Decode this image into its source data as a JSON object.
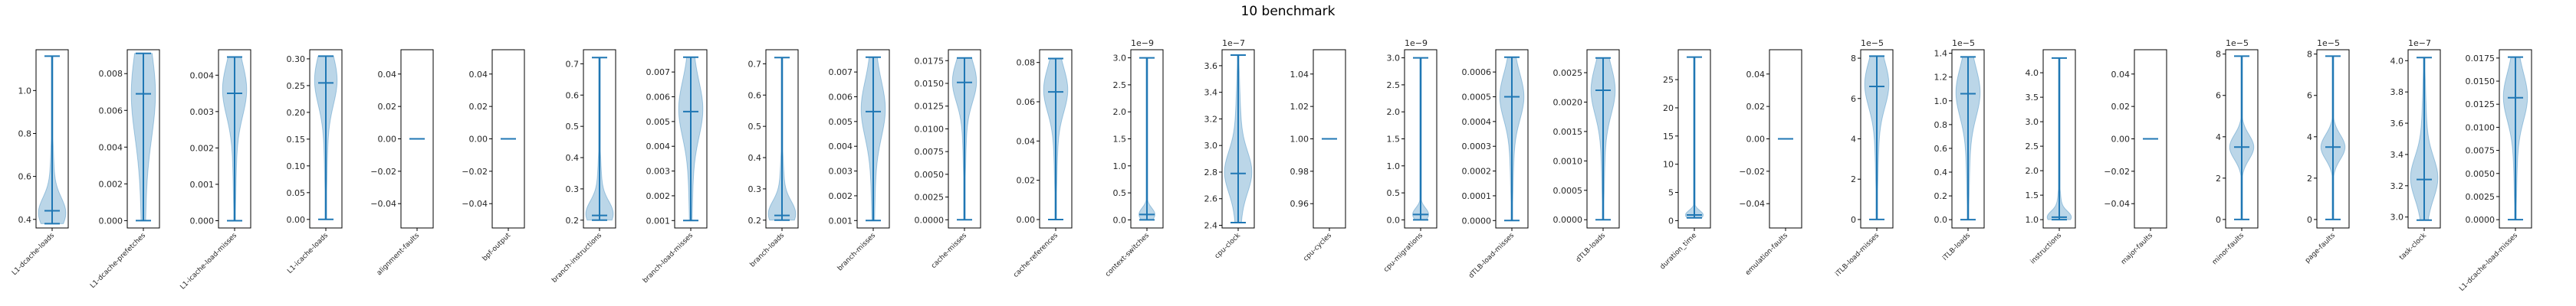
{
  "title": "10 benchmark",
  "colors": {
    "violin_fill": "#1f77b4",
    "line": "#1f77b4",
    "axes": "#000000"
  },
  "chart_data": {
    "type": "violin",
    "title": "10 benchmark",
    "panels": [
      {
        "name": "L1-dcache-loads",
        "ylim": [
          0.36,
          1.19
        ],
        "ticks": [
          0.4,
          0.6,
          0.8,
          1.0
        ],
        "tick_labels": [
          "0.4",
          "0.6",
          "0.8",
          "1.0"
        ],
        "offset": "",
        "min": 0.38,
        "max": 1.16,
        "median": 0.44,
        "mode": 0.43,
        "width": 0.85,
        "spread": 0.07,
        "tail": 0.28
      },
      {
        "name": "L1-dcache-prefetches",
        "ylim": [
          -0.0004,
          0.0093
        ],
        "ticks": [
          0.0,
          0.002,
          0.004,
          0.006,
          0.008
        ],
        "tick_labels": [
          "0.000",
          "0.002",
          "0.004",
          "0.006",
          "0.008"
        ],
        "offset": "",
        "min": 0.0,
        "max": 0.0091,
        "median": 0.0069,
        "mode": 0.0069,
        "width": 0.75,
        "spread": 0.0023,
        "tail": 0.4
      },
      {
        "name": "L1-icache-load-misses",
        "ylim": [
          -0.0002,
          0.0047
        ],
        "ticks": [
          0.0,
          0.001,
          0.002,
          0.003,
          0.004
        ],
        "tick_labels": [
          "0.000",
          "0.001",
          "0.002",
          "0.003",
          "0.004"
        ],
        "offset": "",
        "min": 0.0,
        "max": 0.0045,
        "median": 0.0035,
        "mode": 0.0036,
        "width": 0.75,
        "spread": 0.0007,
        "tail": 0.3
      },
      {
        "name": "L1-icache-loads",
        "ylim": [
          -0.016,
          0.317
        ],
        "ticks": [
          0.0,
          0.05,
          0.1,
          0.15,
          0.2,
          0.25,
          0.3
        ],
        "tick_labels": [
          "0.00",
          "0.05",
          "0.10",
          "0.15",
          "0.20",
          "0.25",
          "0.30"
        ],
        "offset": "",
        "min": 0.0,
        "max": 0.305,
        "median": 0.255,
        "mode": 0.26,
        "width": 0.7,
        "spread": 0.045,
        "tail": 0.3
      },
      {
        "name": "alignment-faults",
        "ylim": [
          -0.055,
          0.055
        ],
        "ticks": [
          -0.04,
          -0.02,
          0.0,
          0.02,
          0.04
        ],
        "tick_labels": [
          "−0.04",
          "−0.02",
          "0.00",
          "0.02",
          "0.04"
        ],
        "offset": "",
        "min": 0.0,
        "max": 0.0,
        "median": 0.0,
        "mode": 0.0,
        "width": 0.0,
        "spread": 0.0,
        "tail": 0.0
      },
      {
        "name": "bpf-output",
        "ylim": [
          -0.055,
          0.055
        ],
        "ticks": [
          -0.04,
          -0.02,
          0.0,
          0.02,
          0.04
        ],
        "tick_labels": [
          "−0.04",
          "−0.02",
          "0.00",
          "0.02",
          "0.04"
        ],
        "offset": "",
        "min": 0.0,
        "max": 0.0,
        "median": 0.0,
        "mode": 0.0,
        "width": 0.0,
        "spread": 0.0,
        "tail": 0.0
      },
      {
        "name": "branch-instructions",
        "ylim": [
          0.175,
          0.745
        ],
        "ticks": [
          0.2,
          0.3,
          0.4,
          0.5,
          0.6,
          0.7
        ],
        "tick_labels": [
          "0.2",
          "0.3",
          "0.4",
          "0.5",
          "0.6",
          "0.7"
        ],
        "offset": "",
        "min": 0.2,
        "max": 0.72,
        "median": 0.215,
        "mode": 0.22,
        "width": 0.85,
        "spread": 0.04,
        "tail": 0.3
      },
      {
        "name": "branch-load-misses",
        "ylim": [
          0.0007,
          0.0079
        ],
        "ticks": [
          0.001,
          0.002,
          0.003,
          0.004,
          0.005,
          0.006,
          0.007
        ],
        "tick_labels": [
          "0.001",
          "0.002",
          "0.003",
          "0.004",
          "0.005",
          "0.006",
          "0.007"
        ],
        "offset": "",
        "min": 0.001,
        "max": 0.0076,
        "median": 0.0054,
        "mode": 0.0055,
        "width": 0.75,
        "spread": 0.0011,
        "tail": 0.35
      },
      {
        "name": "branch-loads",
        "ylim": [
          0.175,
          0.745
        ],
        "ticks": [
          0.2,
          0.3,
          0.4,
          0.5,
          0.6,
          0.7
        ],
        "tick_labels": [
          "0.2",
          "0.3",
          "0.4",
          "0.5",
          "0.6",
          "0.7"
        ],
        "offset": "",
        "min": 0.2,
        "max": 0.72,
        "median": 0.215,
        "mode": 0.22,
        "width": 0.85,
        "spread": 0.04,
        "tail": 0.3
      },
      {
        "name": "branch-misses",
        "ylim": [
          0.0007,
          0.0079
        ],
        "ticks": [
          0.001,
          0.002,
          0.003,
          0.004,
          0.005,
          0.006,
          0.007
        ],
        "tick_labels": [
          "0.001",
          "0.002",
          "0.003",
          "0.004",
          "0.005",
          "0.006",
          "0.007"
        ],
        "offset": "",
        "min": 0.001,
        "max": 0.0076,
        "median": 0.0054,
        "mode": 0.0055,
        "width": 0.75,
        "spread": 0.0011,
        "tail": 0.35
      },
      {
        "name": "cache-misses",
        "ylim": [
          -0.0009,
          0.0187
        ],
        "ticks": [
          0.0,
          0.0025,
          0.005,
          0.0075,
          0.01,
          0.0125,
          0.015,
          0.0175
        ],
        "tick_labels": [
          "0.0000",
          "0.0025",
          "0.0050",
          "0.0075",
          "0.0100",
          "0.0125",
          "0.0150",
          "0.0175"
        ],
        "offset": "",
        "min": 0.0,
        "max": 0.0178,
        "median": 0.0151,
        "mode": 0.0152,
        "width": 0.75,
        "spread": 0.0022,
        "tail": 0.3
      },
      {
        "name": "cache-references",
        "ylim": [
          -0.0043,
          0.0865
        ],
        "ticks": [
          0.0,
          0.02,
          0.04,
          0.06,
          0.08
        ],
        "tick_labels": [
          "0.00",
          "0.02",
          "0.04",
          "0.06",
          "0.08"
        ],
        "offset": "",
        "min": 0.0,
        "max": 0.082,
        "median": 0.065,
        "mode": 0.066,
        "width": 0.75,
        "spread": 0.011,
        "tail": 0.3
      },
      {
        "name": "context-switches",
        "ylim": [
          -0.15,
          3.15
        ],
        "ticks": [
          0.0,
          0.5,
          1.0,
          1.5,
          2.0,
          2.5,
          3.0
        ],
        "tick_labels": [
          "0.0",
          "0.5",
          "1.0",
          "1.5",
          "2.0",
          "2.5",
          "3.0"
        ],
        "offset": "1e−9",
        "min": 0.0,
        "max": 3.0,
        "median": 0.1,
        "mode": 0.1,
        "width": 0.5,
        "spread": 0.12,
        "tail": 0.0
      },
      {
        "name": "cpu-clock",
        "ylim": [
          2.38,
          3.72
        ],
        "ticks": [
          2.4,
          2.6,
          2.8,
          3.0,
          3.2,
          3.4,
          3.6
        ],
        "tick_labels": [
          "2.4",
          "2.6",
          "2.8",
          "3.0",
          "3.2",
          "3.4",
          "3.6"
        ],
        "offset": "1e−7",
        "min": 2.42,
        "max": 3.68,
        "median": 2.79,
        "mode": 2.8,
        "width": 0.85,
        "spread": 0.15,
        "tail": 0.4
      },
      {
        "name": "cpu-cycles",
        "ylim": [
          0.945,
          1.055
        ],
        "ticks": [
          0.96,
          0.98,
          1.0,
          1.02,
          1.04
        ],
        "tick_labels": [
          "0.96",
          "0.98",
          "1.00",
          "1.02",
          "1.04"
        ],
        "offset": "",
        "min": 1.0,
        "max": 1.0,
        "median": 1.0,
        "mode": 1.0,
        "width": 0.0,
        "spread": 0.0,
        "tail": 0.0
      },
      {
        "name": "cpu-migrations",
        "ylim": [
          -0.15,
          3.15
        ],
        "ticks": [
          0.0,
          0.5,
          1.0,
          1.5,
          2.0,
          2.5,
          3.0
        ],
        "tick_labels": [
          "0.0",
          "0.5",
          "1.0",
          "1.5",
          "2.0",
          "2.5",
          "3.0"
        ],
        "offset": "1e−9",
        "min": 0.0,
        "max": 3.0,
        "median": 0.1,
        "mode": 0.1,
        "width": 0.5,
        "spread": 0.12,
        "tail": 0.0
      },
      {
        "name": "dTLB-load-misses",
        "ylim": [
          -3e-05,
          0.00069
        ],
        "ticks": [
          0.0,
          0.0001,
          0.0002,
          0.0003,
          0.0004,
          0.0005,
          0.0006
        ],
        "tick_labels": [
          "0.0000",
          "0.0001",
          "0.0002",
          "0.0003",
          "0.0004",
          "0.0005",
          "0.0006"
        ],
        "offset": "",
        "min": 0.0,
        "max": 0.00066,
        "median": 0.0005,
        "mode": 0.0005,
        "width": 0.75,
        "spread": 9e-05,
        "tail": 0.3
      },
      {
        "name": "dTLB-loads",
        "ylim": [
          -0.00014,
          0.00289
        ],
        "ticks": [
          0.0,
          0.0005,
          0.001,
          0.0015,
          0.002,
          0.0025
        ],
        "tick_labels": [
          "0.0000",
          "0.0005",
          "0.0010",
          "0.0015",
          "0.0020",
          "0.0025"
        ],
        "offset": "",
        "min": 0.0,
        "max": 0.00275,
        "median": 0.0022,
        "mode": 0.0022,
        "width": 0.75,
        "spread": 0.0004,
        "tail": 0.3
      },
      {
        "name": "duration_time",
        "ylim": [
          -1.3,
          30.3
        ],
        "ticks": [
          0,
          5,
          10,
          15,
          20,
          25
        ],
        "tick_labels": [
          "0",
          "5",
          "10",
          "15",
          "20",
          "25"
        ],
        "offset": "",
        "min": 0.5,
        "max": 29.0,
        "median": 1.0,
        "mode": 1.0,
        "width": 0.55,
        "spread": 0.8,
        "tail": 0.0
      },
      {
        "name": "emulation-faults",
        "ylim": [
          -0.055,
          0.055
        ],
        "ticks": [
          -0.04,
          -0.02,
          0.0,
          0.02,
          0.04
        ],
        "tick_labels": [
          "−0.04",
          "−0.02",
          "0.00",
          "0.02",
          "0.04"
        ],
        "offset": "",
        "min": 0.0,
        "max": 0.0,
        "median": 0.0,
        "mode": 0.0,
        "width": 0.0,
        "spread": 0.0,
        "tail": 0.0
      },
      {
        "name": "iTLB-load-misses",
        "ylim": [
          -0.42,
          8.42
        ],
        "ticks": [
          0,
          2,
          4,
          6,
          8
        ],
        "tick_labels": [
          "0",
          "2",
          "4",
          "6",
          "8"
        ],
        "offset": "1e−5",
        "min": 0.0,
        "max": 8.1,
        "median": 6.6,
        "mode": 6.7,
        "width": 0.75,
        "spread": 1.1,
        "tail": 0.3
      },
      {
        "name": "iTLB-loads",
        "ylim": [
          -0.07,
          1.43
        ],
        "ticks": [
          0.0,
          0.2,
          0.4,
          0.6,
          0.8,
          1.0,
          1.2,
          1.4
        ],
        "tick_labels": [
          "0.0",
          "0.2",
          "0.4",
          "0.6",
          "0.8",
          "1.0",
          "1.2",
          "1.4"
        ],
        "offset": "1e−5",
        "min": 0.0,
        "max": 1.37,
        "median": 1.06,
        "mode": 1.07,
        "width": 0.75,
        "spread": 0.2,
        "tail": 0.3
      },
      {
        "name": "instructions",
        "ylim": [
          0.83,
          4.47
        ],
        "ticks": [
          1.0,
          1.5,
          2.0,
          2.5,
          3.0,
          3.5,
          4.0
        ],
        "tick_labels": [
          "1.0",
          "1.5",
          "2.0",
          "2.5",
          "3.0",
          "3.5",
          "4.0"
        ],
        "offset": "",
        "min": 1.0,
        "max": 4.3,
        "median": 1.05,
        "mode": 1.05,
        "width": 0.75,
        "spread": 0.12,
        "tail": 0.3
      },
      {
        "name": "major-faults",
        "ylim": [
          -0.055,
          0.055
        ],
        "ticks": [
          -0.04,
          -0.02,
          0.0,
          0.02,
          0.04
        ],
        "tick_labels": [
          "−0.04",
          "−0.02",
          "0.00",
          "0.02",
          "0.04"
        ],
        "offset": "",
        "min": 0.0,
        "max": 0.0,
        "median": 0.0,
        "mode": 0.0,
        "width": 0.0,
        "spread": 0.0,
        "tail": 0.0
      },
      {
        "name": "minor-faults",
        "ylim": [
          -0.41,
          8.21
        ],
        "ticks": [
          0,
          2,
          4,
          6,
          8
        ],
        "tick_labels": [
          "0",
          "2",
          "4",
          "6",
          "8"
        ],
        "offset": "1e−5",
        "min": 0.0,
        "max": 7.9,
        "median": 3.5,
        "mode": 3.5,
        "width": 0.75,
        "spread": 0.6,
        "tail": 0.0
      },
      {
        "name": "page-faults",
        "ylim": [
          -0.41,
          8.21
        ],
        "ticks": [
          0,
          2,
          4,
          6,
          8
        ],
        "tick_labels": [
          "0",
          "2",
          "4",
          "6",
          "8"
        ],
        "offset": "1e−5",
        "min": 0.0,
        "max": 7.9,
        "median": 3.5,
        "mode": 3.5,
        "width": 0.75,
        "spread": 0.6,
        "tail": 0.0
      },
      {
        "name": "task-clock",
        "ylim": [
          2.93,
          4.07
        ],
        "ticks": [
          3.0,
          3.2,
          3.4,
          3.6,
          3.8,
          4.0
        ],
        "tick_labels": [
          "3.0",
          "3.2",
          "3.4",
          "3.6",
          "3.8",
          "4.0"
        ],
        "offset": "1e−7",
        "min": 2.98,
        "max": 4.02,
        "median": 3.24,
        "mode": 3.25,
        "width": 0.85,
        "spread": 0.13,
        "tail": 0.35
      },
      {
        "name": "L1-dcache-load-misses",
        "ylim": [
          -0.0009,
          0.0184
        ],
        "ticks": [
          0.0,
          0.0025,
          0.005,
          0.0075,
          0.01,
          0.0125,
          0.015,
          0.0175
        ],
        "tick_labels": [
          "0.0000",
          "0.0025",
          "0.0050",
          "0.0075",
          "0.0100",
          "0.0125",
          "0.0150",
          "0.0175"
        ],
        "offset": "",
        "min": 0.0,
        "max": 0.0176,
        "median": 0.0132,
        "mode": 0.0133,
        "width": 0.75,
        "spread": 0.0025,
        "tail": 0.3
      }
    ]
  }
}
